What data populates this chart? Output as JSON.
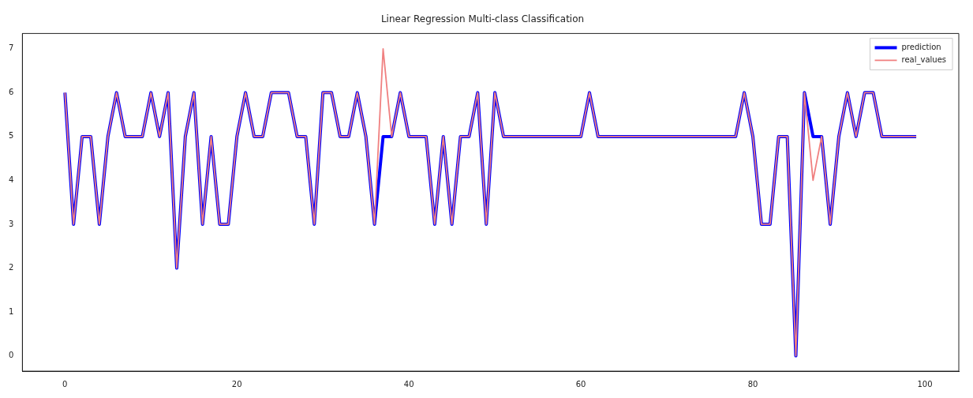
{
  "chart_data": {
    "type": "line",
    "title": "Linear Regression Multi-class Classification",
    "x": [
      0,
      1,
      2,
      3,
      4,
      5,
      6,
      7,
      8,
      9,
      10,
      11,
      12,
      13,
      14,
      15,
      16,
      17,
      18,
      19,
      20,
      21,
      22,
      23,
      24,
      25,
      26,
      27,
      28,
      29,
      30,
      31,
      32,
      33,
      34,
      35,
      36,
      37,
      38,
      39,
      40,
      41,
      42,
      43,
      44,
      45,
      46,
      47,
      48,
      49,
      50,
      51,
      52,
      53,
      54,
      55,
      56,
      57,
      58,
      59,
      60,
      61,
      62,
      63,
      64,
      65,
      66,
      67,
      68,
      69,
      70,
      71,
      72,
      73,
      74,
      75,
      76,
      77,
      78,
      79,
      80,
      81,
      82,
      83,
      84,
      85,
      86,
      87,
      88,
      89,
      90,
      91,
      92,
      93,
      94,
      95,
      96,
      97,
      98,
      99
    ],
    "series": [
      {
        "name": "prediction",
        "color": "#0000ff",
        "values": [
          6,
          3,
          5,
          5,
          3,
          5,
          6,
          5,
          5,
          5,
          6,
          5,
          6,
          2,
          5,
          6,
          3,
          5,
          3,
          3,
          5,
          6,
          5,
          5,
          6,
          6,
          6,
          5,
          5,
          3,
          6,
          6,
          5,
          5,
          6,
          5,
          3,
          5,
          5,
          6,
          5,
          5,
          5,
          3,
          5,
          3,
          5,
          5,
          6,
          3,
          6,
          5,
          5,
          5,
          5,
          5,
          5,
          5,
          5,
          5,
          5,
          6,
          5,
          5,
          5,
          5,
          5,
          5,
          5,
          5,
          5,
          5,
          5,
          5,
          5,
          5,
          5,
          5,
          5,
          6,
          5,
          3,
          3,
          5,
          5,
          0,
          6,
          5,
          5,
          3,
          5,
          6,
          5,
          6,
          6,
          5,
          5,
          5,
          5,
          5
        ]
      },
      {
        "name": "real_values",
        "color": "#f08080",
        "values": [
          6,
          3,
          5,
          5,
          3,
          5,
          6,
          5,
          5,
          5,
          6,
          5,
          6,
          2,
          5,
          6,
          3,
          5,
          3,
          3,
          5,
          6,
          5,
          5,
          6,
          6,
          6,
          5,
          5,
          3,
          6,
          6,
          5,
          5,
          6,
          5,
          3,
          7,
          5,
          6,
          5,
          5,
          5,
          3,
          5,
          3,
          5,
          5,
          6,
          3,
          6,
          5,
          5,
          5,
          5,
          5,
          5,
          5,
          5,
          5,
          5,
          6,
          5,
          5,
          5,
          5,
          5,
          5,
          5,
          5,
          5,
          5,
          5,
          5,
          5,
          5,
          5,
          5,
          5,
          6,
          5,
          3,
          3,
          5,
          5,
          0,
          6,
          4,
          5,
          3,
          5,
          6,
          5,
          6,
          6,
          5,
          5,
          5,
          5,
          5
        ]
      }
    ],
    "xlim": [
      -4.95,
      103.95
    ],
    "xticks": [
      0,
      20,
      40,
      60,
      80,
      100
    ],
    "ylim": [
      -0.35,
      7.35
    ],
    "yticks": [
      0,
      1,
      2,
      3,
      4,
      5,
      6,
      7
    ],
    "grid": false,
    "legend": "top right",
    "marker": "none",
    "line_style": "solid"
  }
}
